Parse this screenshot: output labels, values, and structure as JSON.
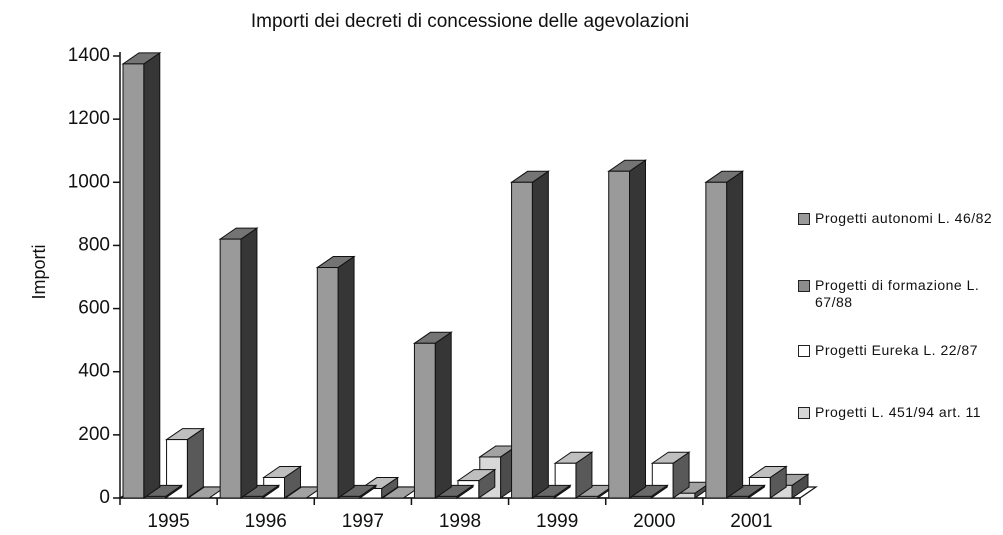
{
  "chart_data": {
    "type": "bar3d",
    "title": "Importi dei decreti di concessione delle agevolazioni",
    "y_label": "Importi",
    "categories": [
      "1995",
      "1996",
      "1997",
      "1998",
      "1999",
      "2000",
      "2001"
    ],
    "series": [
      {
        "name": "Progetti autonomi L. 46/82",
        "color": "#9a9a9a",
        "values": [
          1375,
          820,
          730,
          490,
          1000,
          1035,
          1000
        ]
      },
      {
        "name": "Progetti di formazione L. 67/88",
        "color": "#8c8c8c",
        "values": [
          5,
          5,
          5,
          5,
          5,
          5,
          5
        ]
      },
      {
        "name": "Progetti Eureka L. 22/87",
        "color": "#ffffff",
        "values": [
          185,
          65,
          30,
          55,
          110,
          110,
          65
        ]
      },
      {
        "name": "Progetti L. 451/94 art. 11",
        "color": "#d8d8d8",
        "values": [
          0,
          0,
          0,
          130,
          5,
          15,
          40
        ]
      }
    ],
    "ylim": [
      0,
      1400
    ],
    "yticks": [
      0,
      200,
      400,
      600,
      800,
      1000,
      1200,
      1400
    ],
    "legend": "right"
  }
}
